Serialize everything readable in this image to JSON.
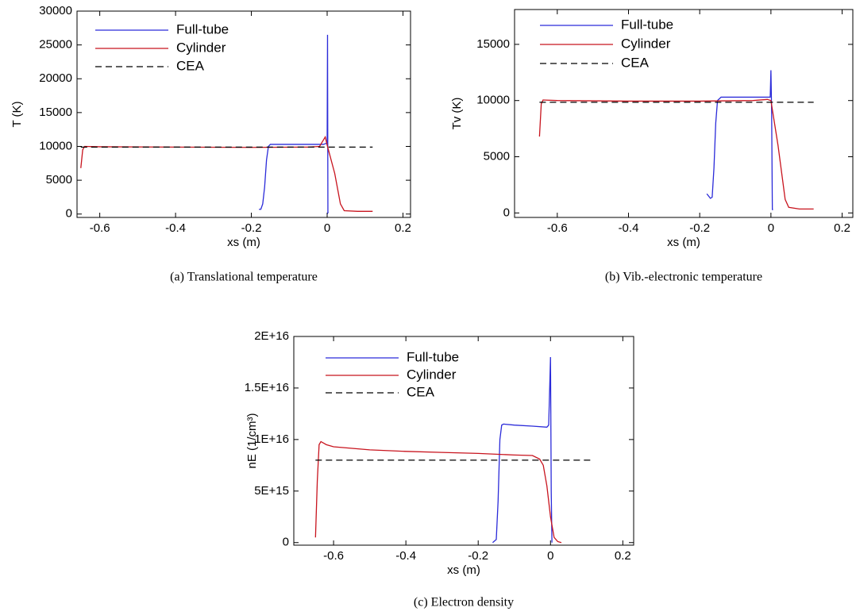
{
  "chart_data": [
    {
      "type": "line",
      "caption": "(a)  Translational temperature",
      "xlabel": "xs (m)",
      "ylabel": "T (K)",
      "xlim": [
        -0.66,
        0.22
      ],
      "xticks": [
        -0.6,
        -0.4,
        -0.2,
        0,
        0.2
      ],
      "ylim": [
        -500,
        30000
      ],
      "yticks": [
        0,
        5000,
        10000,
        15000,
        20000,
        25000,
        30000
      ],
      "legend": "upper left",
      "series": [
        {
          "name": "Full-tube",
          "color": "#2b2bd9",
          "style": "solid",
          "x": [
            -0.18,
            -0.175,
            -0.17,
            -0.165,
            -0.16,
            -0.155,
            -0.15,
            -0.1,
            -0.05,
            -0.01,
            0.0,
            0.001,
            0.002,
            0.003
          ],
          "values": [
            700,
            700,
            1500,
            4000,
            8000,
            10000,
            10300,
            10300,
            10300,
            10300,
            10500,
            26500,
            200,
            300
          ]
        },
        {
          "name": "Cylinder",
          "color": "#c8141e",
          "style": "solid",
          "x": [
            -0.65,
            -0.645,
            -0.64,
            -0.6,
            -0.4,
            -0.2,
            -0.05,
            -0.02,
            -0.005,
            0.0,
            0.02,
            0.035,
            0.045,
            0.08,
            0.12
          ],
          "values": [
            6800,
            9500,
            10000,
            9950,
            9900,
            9850,
            9900,
            10000,
            11400,
            10200,
            6000,
            1500,
            500,
            400,
            400
          ]
        },
        {
          "name": "CEA",
          "color": "#000000",
          "style": "dashed",
          "x": [
            -0.65,
            0.12
          ],
          "values": [
            9900,
            9900
          ]
        }
      ]
    },
    {
      "type": "line",
      "caption": "(b)  Vib.-electronic temperature",
      "xlabel": "xs (m)",
      "ylabel": "Tv (K)",
      "xlim": [
        -0.72,
        0.23
      ],
      "xticks": [
        -0.6,
        -0.4,
        -0.2,
        0,
        0.2
      ],
      "ylim": [
        -400,
        18100
      ],
      "yticks": [
        0,
        5000,
        10000,
        15000
      ],
      "legend": "upper left",
      "series": [
        {
          "name": "Full-tube",
          "color": "#2b2bd9",
          "style": "solid",
          "x": [
            -0.18,
            -0.17,
            -0.165,
            -0.16,
            -0.155,
            -0.15,
            -0.14,
            -0.1,
            -0.05,
            -0.01,
            -0.002,
            0.0,
            0.002,
            0.004,
            0.006
          ],
          "values": [
            1700,
            1300,
            1400,
            4000,
            8000,
            10000,
            10300,
            10300,
            10300,
            10300,
            10300,
            12700,
            9000,
            300,
            300
          ]
        },
        {
          "name": "Cylinder",
          "color": "#c8141e",
          "style": "solid",
          "x": [
            -0.65,
            -0.645,
            -0.64,
            -0.6,
            -0.4,
            -0.2,
            -0.05,
            -0.01,
            0.0,
            0.02,
            0.04,
            0.05,
            0.08,
            0.12
          ],
          "values": [
            6800,
            9700,
            10050,
            10000,
            9950,
            9950,
            10000,
            10100,
            10000,
            6000,
            1200,
            500,
            350,
            350
          ]
        },
        {
          "name": "CEA",
          "color": "#000000",
          "style": "dashed",
          "x": [
            -0.65,
            0.12
          ],
          "values": [
            9850,
            9850
          ]
        }
      ]
    },
    {
      "type": "line",
      "caption": "(c)  Electron density",
      "xlabel": "xs (m)",
      "ylabel": "nE (1/cm³)",
      "xlim": [
        -0.71,
        0.23
      ],
      "xticks": [
        -0.6,
        -0.4,
        -0.2,
        0,
        0.2
      ],
      "ylim": [
        -250000000000000,
        20000000000000000
      ],
      "yticks": [
        0,
        {
          "value": 5000000000000000,
          "label": "5E+15"
        },
        {
          "value": 10000000000000000,
          "label": "1E+16"
        },
        {
          "value": 15000000000000000,
          "label": "1.5E+16"
        },
        {
          "value": 20000000000000000,
          "label": "2E+16"
        }
      ],
      "legend": "upper left",
      "series": [
        {
          "name": "Full-tube",
          "color": "#2b2bd9",
          "style": "solid",
          "x": [
            -0.16,
            -0.15,
            -0.145,
            -0.14,
            -0.135,
            -0.13,
            -0.1,
            -0.05,
            -0.01,
            -0.005,
            0.0,
            0.002,
            0.004
          ],
          "values": [
            0,
            300000000000000,
            4000000000000000,
            10000000000000000,
            11400000000000000,
            11500000000000000,
            11400000000000000,
            11300000000000000,
            11200000000000000,
            11400000000000000,
            18000000000000000,
            5000000000000000,
            0
          ]
        },
        {
          "name": "Cylinder",
          "color": "#c8141e",
          "style": "solid",
          "x": [
            -0.65,
            -0.645,
            -0.64,
            -0.635,
            -0.62,
            -0.6,
            -0.5,
            -0.4,
            -0.3,
            -0.2,
            -0.1,
            -0.05,
            -0.03,
            -0.02,
            -0.01,
            0.0,
            0.01,
            0.02,
            0.03
          ],
          "values": [
            500000000000000,
            6000000000000000,
            9500000000000000,
            9800000000000000,
            9500000000000000,
            9300000000000000,
            9000000000000000,
            8850000000000000,
            8750000000000000,
            8650000000000000,
            8500000000000000,
            8450000000000000,
            8100000000000000,
            7500000000000000,
            5500000000000000,
            2500000000000000,
            500000000000000,
            100000000000000,
            0
          ]
        },
        {
          "name": "CEA",
          "color": "#000000",
          "style": "dashed",
          "x": [
            -0.65,
            0.12
          ],
          "values": [
            8000000000000000,
            8000000000000000
          ]
        }
      ]
    }
  ]
}
